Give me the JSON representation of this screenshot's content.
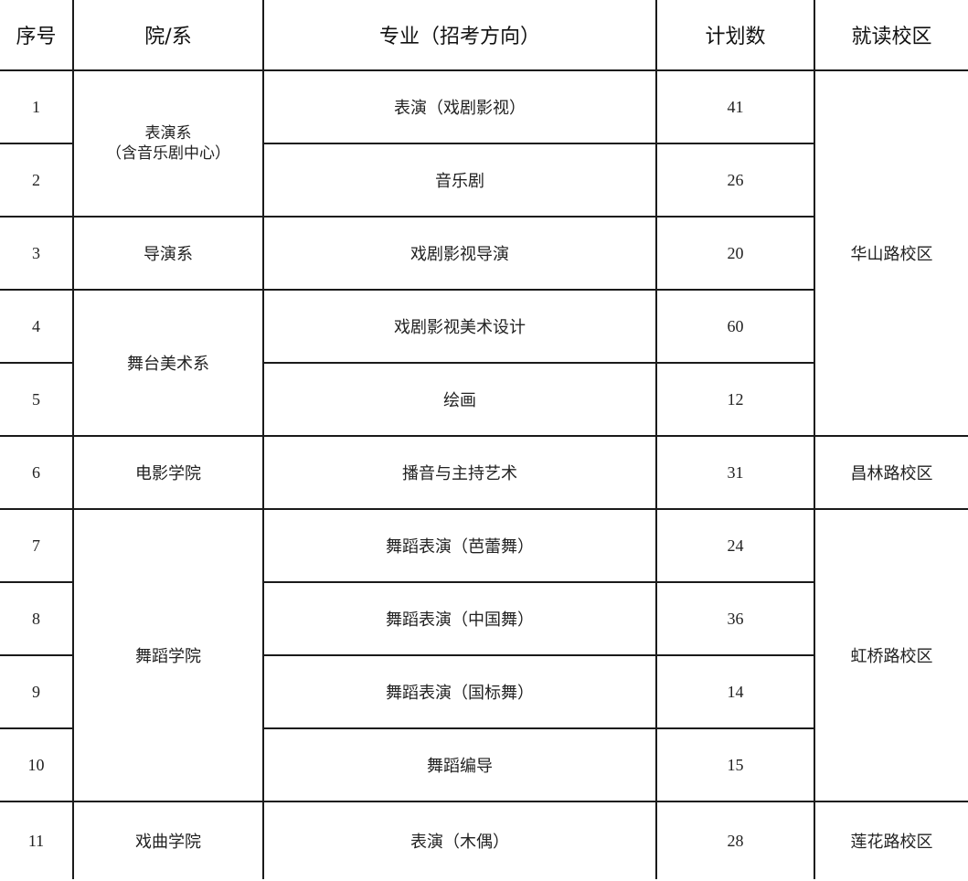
{
  "headers": [
    "序号",
    "院/系",
    "专业（招考方向）",
    "计划数",
    "就读校区"
  ],
  "depts": {
    "perf": {
      "name": "表演系",
      "note": "（含音乐剧中心）"
    },
    "directing": {
      "name": "导演系"
    },
    "stage": {
      "name": "舞台美术系"
    },
    "film": {
      "name": "电影学院"
    },
    "dance": {
      "name": "舞蹈学院"
    },
    "opera": {
      "name": "戏曲学院"
    }
  },
  "campuses": {
    "huashan": "华山路校区",
    "changlin": "昌林路校区",
    "hongqiao": "虹桥路校区",
    "lianhua": "莲花路校区"
  },
  "rows": [
    {
      "no": "1",
      "major": "表演（戏剧影视）",
      "plan": "41"
    },
    {
      "no": "2",
      "major": "音乐剧",
      "plan": "26"
    },
    {
      "no": "3",
      "major": "戏剧影视导演",
      "plan": "20"
    },
    {
      "no": "4",
      "major": "戏剧影视美术设计",
      "plan": "60"
    },
    {
      "no": "5",
      "major": "绘画",
      "plan": "12"
    },
    {
      "no": "6",
      "major": "播音与主持艺术",
      "plan": "31"
    },
    {
      "no": "7",
      "major": "舞蹈表演（芭蕾舞）",
      "plan": "24"
    },
    {
      "no": "8",
      "major": "舞蹈表演（中国舞）",
      "plan": "36"
    },
    {
      "no": "9",
      "major": "舞蹈表演（国标舞）",
      "plan": "14"
    },
    {
      "no": "10",
      "major": "舞蹈编导",
      "plan": "15"
    },
    {
      "no": "11",
      "major": "表演（木偶）",
      "plan": "28"
    }
  ]
}
